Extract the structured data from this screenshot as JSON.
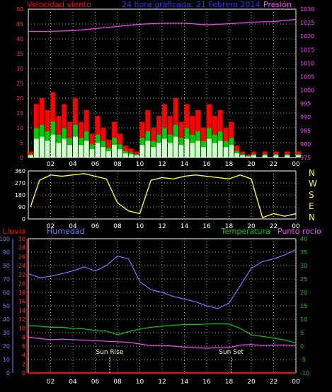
{
  "panel_top": {
    "title": "24 hora gráficada: 21 Febrero 2014",
    "left_label": "Velocidad viento",
    "right_label": "Presión",
    "colors": {
      "wind": "#ff0000",
      "gust": "#00cc00",
      "avg": "#ccffcc",
      "pressure": "#ff44ff",
      "title": "#3333ff",
      "grid": "#a0a0a0"
    }
  },
  "panel_mid": {
    "compass_labels": [
      "N",
      "W",
      "S",
      "E",
      "N"
    ],
    "colors": {
      "direction": "#ffff00"
    }
  },
  "panel_bottom": {
    "label_rain": "Lluvia",
    "label_humidity": "Humedad",
    "label_temp": "Temperatura",
    "label_dew": "Punto rocío",
    "sunrise": "Sun Rise",
    "sunset": "Sun Set",
    "colors": {
      "rain": "#ff0000",
      "humidity": "#7777ff",
      "temp": "#00cc00",
      "dew": "#ff44ff"
    }
  },
  "x_ticks": [
    "02",
    "04",
    "06",
    "08",
    "10",
    "12",
    "14",
    "16",
    "18",
    "20",
    "22",
    "00"
  ],
  "chart_data": [
    {
      "type": "area",
      "title": "24 hora gráficada: 21 Febrero 2014",
      "y_left_ticks": [
        "0",
        "5",
        "10",
        "15",
        "20",
        "25",
        "30",
        "35",
        "40",
        "45",
        "50"
      ],
      "y_right_ticks": [
        "975",
        "980",
        "985",
        "990",
        "995",
        "1000",
        "1005",
        "1010",
        "1015",
        "1020",
        "1025",
        "1030"
      ],
      "y_left_range": [
        0,
        50
      ],
      "y_right_range": [
        975,
        1030
      ],
      "x_range_hours": [
        0,
        24
      ],
      "series": [
        {
          "name": "Velocidad viento",
          "axis": "left",
          "x": [
            0,
            0.5,
            1,
            1.5,
            2,
            2.5,
            3,
            3.5,
            4,
            4.5,
            5,
            5.5,
            6,
            6.5,
            7,
            7.5,
            8,
            8.5,
            9,
            9.5,
            10,
            10.5,
            11,
            11.5,
            12,
            12.5,
            13,
            13.5,
            14,
            14.5,
            15,
            15.5,
            16,
            16.5,
            17,
            17.5,
            18,
            18.5,
            19,
            19.5,
            20,
            21,
            22,
            23,
            24
          ],
          "values": [
            2,
            18,
            20,
            16,
            22,
            14,
            18,
            12,
            20,
            12,
            16,
            8,
            14,
            10,
            6,
            12,
            8,
            4,
            3,
            2,
            12,
            16,
            10,
            14,
            18,
            14,
            20,
            12,
            18,
            14,
            16,
            10,
            18,
            14,
            16,
            10,
            12,
            4,
            2,
            1,
            2,
            2,
            2,
            2,
            2
          ]
        },
        {
          "name": "Presión",
          "axis": "right",
          "x": [
            0,
            2,
            4,
            6,
            8,
            10,
            12,
            14,
            16,
            18,
            20,
            22,
            24
          ],
          "values": [
            1021.8,
            1021.8,
            1022,
            1022.8,
            1023.6,
            1024.4,
            1024.8,
            1024.8,
            1024.2,
            1024.6,
            1025.2,
            1025.4,
            1026.2
          ]
        }
      ]
    },
    {
      "type": "line",
      "y_ticks": [
        "0",
        "90",
        "180",
        "270",
        "360"
      ],
      "y_range": [
        0,
        360
      ],
      "series": [
        {
          "name": "direction",
          "x": [
            0.2,
            1,
            2,
            3,
            4,
            5,
            6,
            7,
            8,
            9,
            10,
            11,
            12,
            13,
            14,
            15,
            16,
            17,
            18,
            19,
            20,
            21,
            22,
            23,
            24
          ],
          "values": [
            90,
            290,
            330,
            320,
            330,
            340,
            320,
            300,
            120,
            60,
            40,
            290,
            310,
            300,
            320,
            330,
            320,
            310,
            300,
            330,
            300,
            10,
            40,
            20,
            40
          ]
        }
      ]
    },
    {
      "type": "line",
      "y_left_outer_ticks": [
        "0",
        "10",
        "20",
        "30",
        "40",
        "50",
        "60",
        "70",
        "80",
        "90",
        "100"
      ],
      "y_left_inner_ticks": [
        "0",
        "2",
        "4",
        "6",
        "8",
        "10",
        "12",
        "14",
        "16",
        "18",
        "20",
        "22",
        "24",
        "26",
        "28",
        "30"
      ],
      "y_right_ticks": [
        "-10",
        "-5",
        "0",
        "5",
        "10",
        "15",
        "20",
        "25",
        "30",
        "35",
        "40"
      ],
      "humidity_range": [
        0,
        100
      ],
      "temp_range": [
        -10,
        40
      ],
      "sunrise_hour": 7.3,
      "sunset_hour": 18.2,
      "series": [
        {
          "name": "Humedad",
          "axis": "outer_left",
          "x": [
            0,
            1,
            2,
            3,
            4,
            5,
            6,
            7,
            8,
            9,
            10,
            11,
            12,
            13,
            14,
            15,
            16,
            17,
            18,
            19,
            20,
            21,
            22,
            23,
            24
          ],
          "values": [
            74,
            71,
            72,
            74,
            76,
            79,
            76,
            80,
            87,
            85,
            68,
            62,
            60,
            57,
            55,
            53,
            50,
            48,
            52,
            65,
            78,
            83,
            85,
            88,
            92
          ]
        },
        {
          "name": "Temperatura",
          "axis": "right",
          "x": [
            0,
            1,
            2,
            3,
            4,
            5,
            6,
            7,
            8,
            9,
            10,
            11,
            12,
            13,
            14,
            15,
            16,
            17,
            18,
            19,
            20,
            21,
            22,
            23,
            24
          ],
          "values": [
            7.6,
            7.4,
            7,
            7,
            6.6,
            6.4,
            5.8,
            5.6,
            4.2,
            5.4,
            6.4,
            7,
            7.4,
            7.8,
            8,
            8,
            8.2,
            8.4,
            8.2,
            6.6,
            4.2,
            3.6,
            3,
            2.2,
            1.2
          ]
        },
        {
          "name": "Punto rocío",
          "axis": "right",
          "x": [
            0,
            1,
            2,
            3,
            4,
            5,
            6,
            7,
            8,
            9,
            10,
            11,
            12,
            13,
            14,
            15,
            16,
            17,
            18,
            19,
            20,
            21,
            22,
            23,
            24
          ],
          "values": [
            3.4,
            2.8,
            2.4,
            2.6,
            2.4,
            2.2,
            2,
            1.8,
            1.6,
            1.4,
            0.8,
            0.2,
            0.2,
            0,
            -0.4,
            -0.6,
            -0.8,
            -0.6,
            -0.6,
            0.4,
            0.6,
            0.2,
            0.4,
            0.4,
            0.2
          ]
        },
        {
          "name": "Lluvia",
          "axis": "inner_left",
          "x": [
            0,
            24
          ],
          "values": [
            0,
            0
          ]
        }
      ]
    }
  ]
}
